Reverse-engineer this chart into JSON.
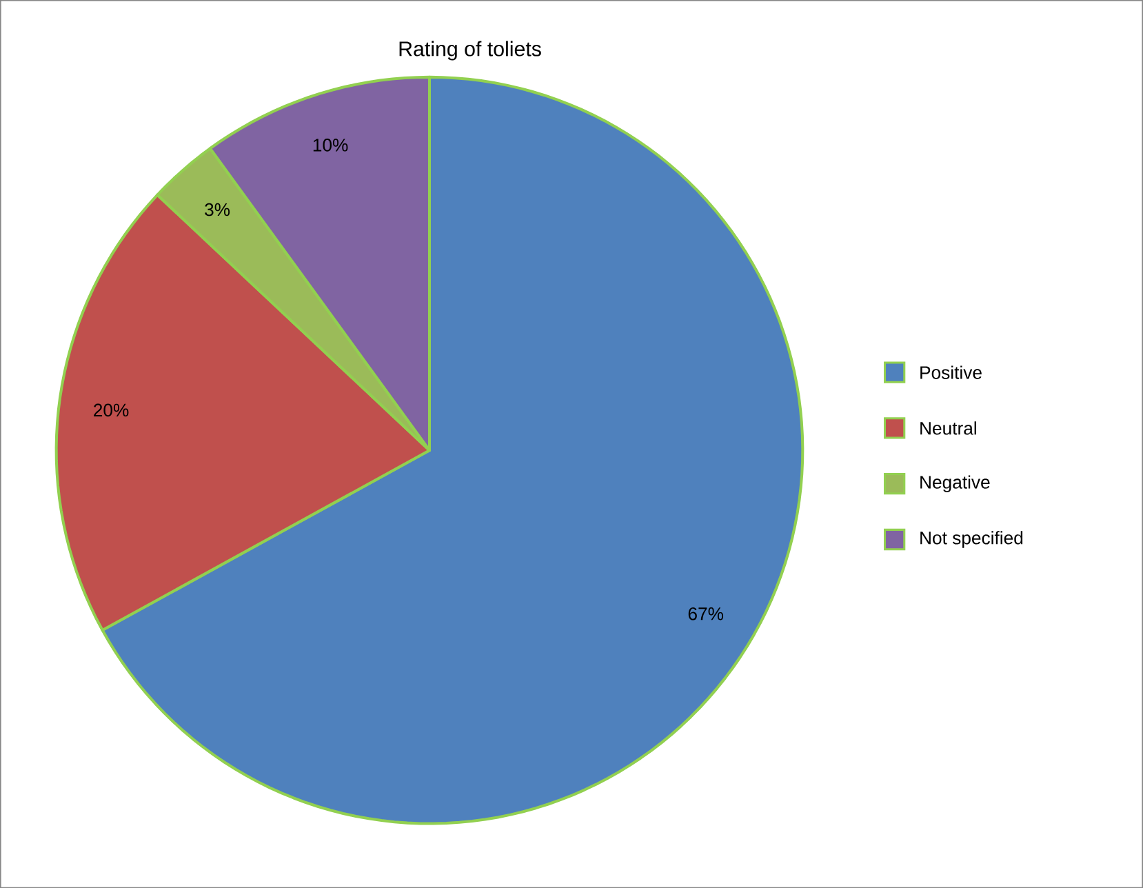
{
  "chart_data": {
    "type": "pie",
    "title": "Rating of toliets",
    "categories": [
      "Positive",
      "Neutral",
      "Negative",
      "Not specified"
    ],
    "values": [
      67,
      20,
      3,
      10
    ],
    "colors": [
      "#4f81bd",
      "#c0504d",
      "#9bbb59",
      "#8064a2"
    ],
    "value_labels": [
      "67%",
      "20%",
      "3%",
      "10%"
    ],
    "legend": "right"
  }
}
